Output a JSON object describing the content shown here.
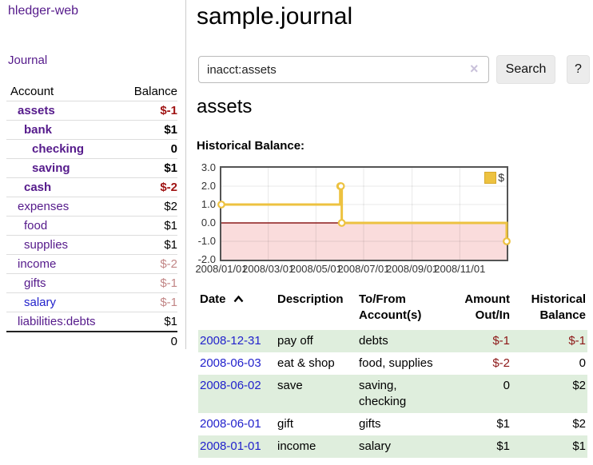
{
  "app_title": "hledger-web",
  "sidebar": {
    "journal_link": "Journal",
    "table": {
      "account_header": "Account",
      "balance_header": "Balance",
      "rows": [
        {
          "name": "assets",
          "balance": "$-1"
        },
        {
          "name": "bank",
          "balance": "$1"
        },
        {
          "name": "checking",
          "balance": "0"
        },
        {
          "name": "saving",
          "balance": "$1"
        },
        {
          "name": "cash",
          "balance": "$-2"
        },
        {
          "name": "expenses",
          "balance": "$2"
        },
        {
          "name": "food",
          "balance": "$1"
        },
        {
          "name": "supplies",
          "balance": "$1"
        },
        {
          "name": "income",
          "balance": "$-2"
        },
        {
          "name": "gifts",
          "balance": "$-1"
        },
        {
          "name": "salary",
          "balance": "$-1"
        },
        {
          "name": "liabilities:debts",
          "balance": "$1"
        }
      ],
      "total": "0"
    }
  },
  "header": {
    "title": "sample.journal"
  },
  "search": {
    "value": "inacct:assets",
    "clear_icon": "×",
    "search_button": "Search",
    "help_button": "?"
  },
  "account_page": {
    "heading": "assets",
    "chart_title": "Historical Balance:"
  },
  "chart_data": {
    "type": "line",
    "step": true,
    "title": "Historical Balance",
    "legend_position": "ne",
    "x_range": [
      "2008-01-01",
      "2008-12-31"
    ],
    "ylim": [
      -2,
      3
    ],
    "y_ticks": [
      3,
      2,
      1,
      0,
      -1,
      -2
    ],
    "x_ticks": [
      "2008/01/01",
      "2008/03/01",
      "2008/05/01",
      "2008/07/01",
      "2008/09/01",
      "2008/11/01"
    ],
    "series": [
      {
        "name": "$",
        "points": [
          {
            "date": "2008-01-01",
            "value": 1
          },
          {
            "date": "2008-06-01",
            "value": 2
          },
          {
            "date": "2008-06-02",
            "value": 2
          },
          {
            "date": "2008-06-03",
            "value": 0
          },
          {
            "date": "2008-12-31",
            "value": -1
          }
        ]
      }
    ],
    "line_color": "#edc240",
    "negative_region_color": "#fadcdc",
    "zero_line_color": "#8b1a1a"
  },
  "register": {
    "headers": {
      "date": "Date",
      "description": "Description",
      "accounts": "To/From Account(s)",
      "amount": "Amount Out/In",
      "historical": "Historical Balance"
    },
    "rows": [
      {
        "date": "2008-12-31",
        "description": "pay off",
        "accounts": "debts",
        "amount": "$-1",
        "balance": "$-1"
      },
      {
        "date": "2008-06-03",
        "description": "eat & shop",
        "accounts": "food, supplies",
        "amount": "$-2",
        "balance": "0"
      },
      {
        "date": "2008-06-02",
        "description": "save",
        "accounts": "saving, checking",
        "amount": "0",
        "balance": "$2"
      },
      {
        "date": "2008-06-01",
        "description": "gift",
        "accounts": "gifts",
        "amount": "$1",
        "balance": "$2"
      },
      {
        "date": "2008-01-01",
        "description": "income",
        "accounts": "salary",
        "amount": "$1",
        "balance": "$1"
      }
    ]
  }
}
